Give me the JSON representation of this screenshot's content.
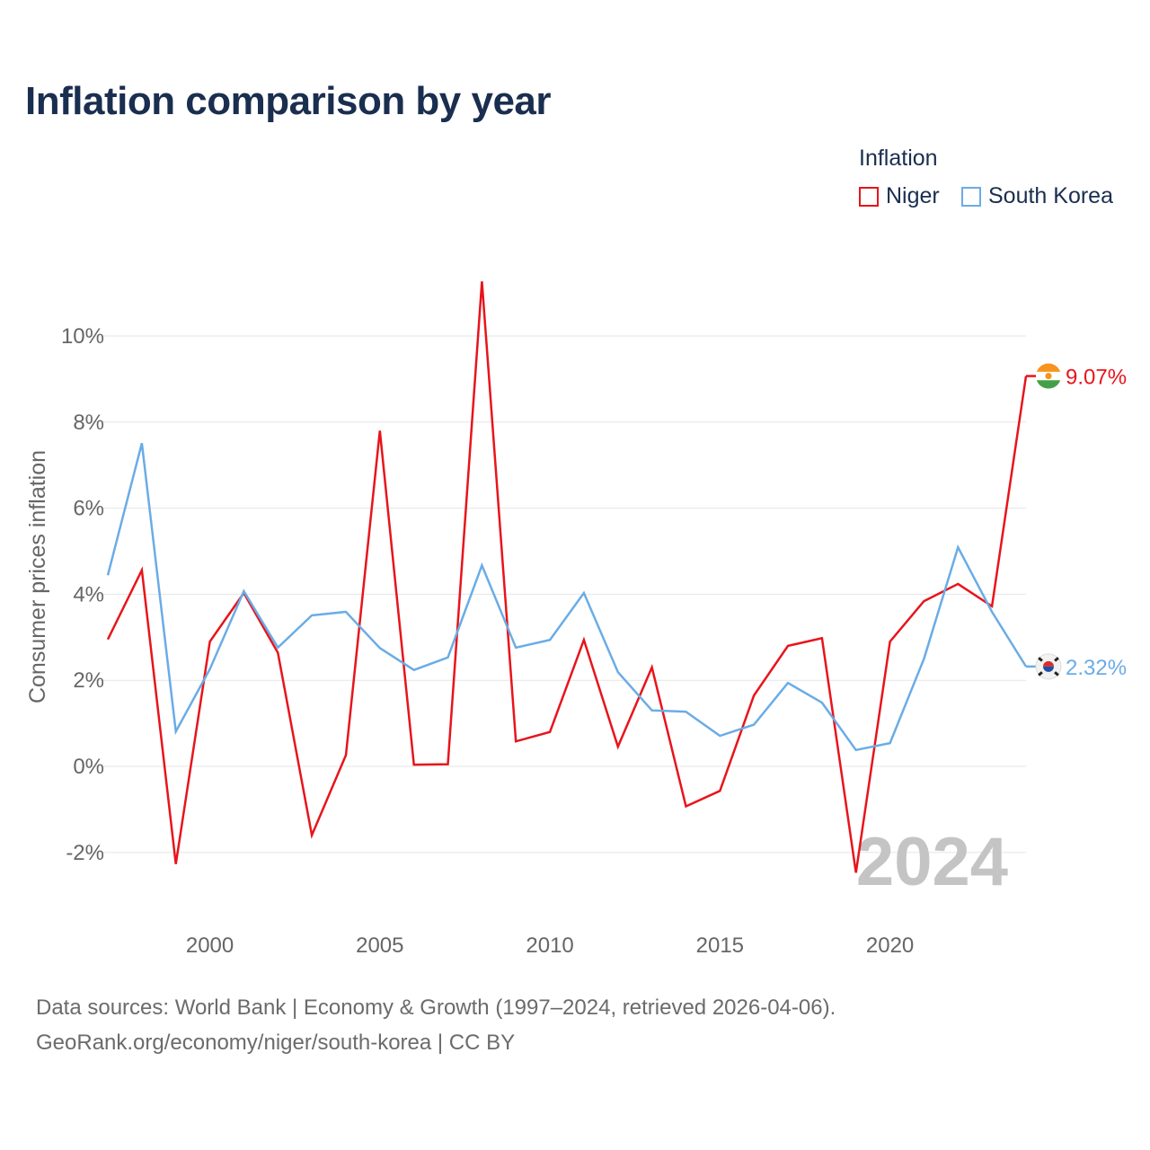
{
  "chart_data": {
    "type": "line",
    "title": "Inflation comparison by year",
    "ylabel": "Consumer prices inflation",
    "xlabel": "",
    "legend_title": "Inflation",
    "legend_position": "top-right",
    "year_label": "2024",
    "xlim": [
      1997,
      2024
    ],
    "ylim": [
      -3.2,
      12.5
    ],
    "x_ticks": [
      2000,
      2005,
      2010,
      2015,
      2020
    ],
    "x_tick_labels": [
      "2000",
      "2005",
      "2010",
      "2015",
      "2020"
    ],
    "y_ticks": [
      -2,
      0,
      2,
      4,
      6,
      8,
      10
    ],
    "y_tick_labels": [
      "-2%",
      "0%",
      "2%",
      "4%",
      "6%",
      "8%",
      "10%"
    ],
    "x": [
      1997,
      1998,
      1999,
      2000,
      2001,
      2002,
      2003,
      2004,
      2005,
      2006,
      2007,
      2008,
      2009,
      2010,
      2011,
      2012,
      2013,
      2014,
      2015,
      2016,
      2017,
      2018,
      2019,
      2020,
      2021,
      2022,
      2023,
      2024
    ],
    "series": [
      {
        "name": "Niger",
        "color": "#e8141b",
        "end_label": "9.07%",
        "flag_icon": "niger-flag-icon",
        "values": [
          2.95,
          4.56,
          -2.27,
          2.9,
          4.03,
          2.64,
          -1.6,
          0.26,
          7.8,
          0.04,
          0.05,
          11.27,
          0.58,
          0.8,
          2.94,
          0.46,
          2.3,
          -0.93,
          -0.57,
          1.65,
          2.8,
          2.98,
          -2.47,
          2.9,
          3.84,
          4.24,
          3.72,
          9.07
        ]
      },
      {
        "name": "South Korea",
        "color": "#6aace6",
        "end_label": "2.32%",
        "flag_icon": "south-korea-flag-icon",
        "values": [
          4.44,
          7.51,
          0.81,
          2.26,
          4.07,
          2.76,
          3.51,
          3.59,
          2.75,
          2.24,
          2.53,
          4.67,
          2.76,
          2.94,
          4.03,
          2.19,
          1.3,
          1.27,
          0.71,
          0.97,
          1.94,
          1.48,
          0.38,
          0.54,
          2.5,
          5.09,
          3.59,
          2.32
        ]
      }
    ]
  },
  "footer": {
    "line1": "Data sources: World Bank | Economy & Growth (1997–2024, retrieved 2026-04-06).",
    "line2": "GeoRank.org/economy/niger/south-korea | CC BY"
  }
}
